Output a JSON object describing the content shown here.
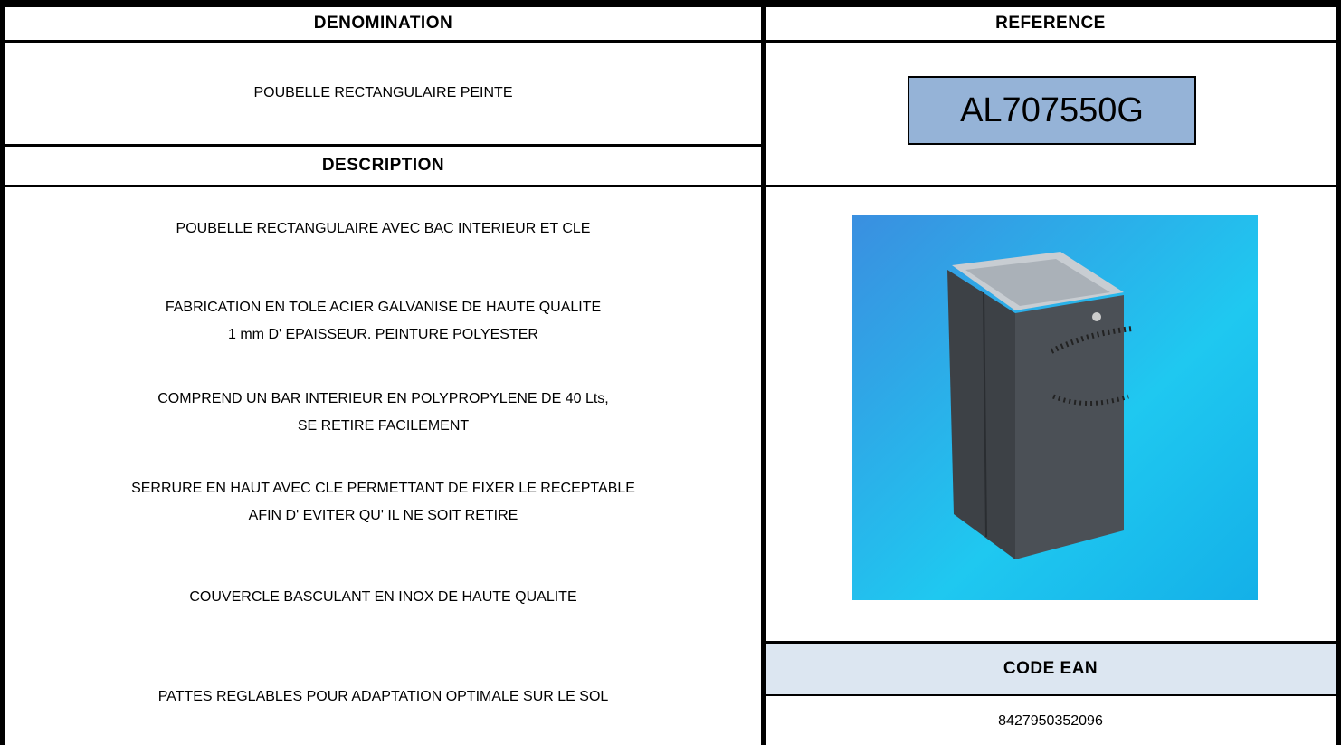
{
  "headers": {
    "denomination": "DENOMINATION",
    "reference": "REFERENCE",
    "description": "DESCRIPTION",
    "code_ean": "CODE EAN"
  },
  "denomination": "POUBELLE RECTANGULAIRE PEINTE",
  "reference": "AL707550G",
  "description": [
    [
      "POUBELLE RECTANGULAIRE AVEC BAC INTERIEUR ET CLE"
    ],
    [
      "FABRICATION EN TOLE ACIER GALVANISE DE HAUTE QUALITE",
      "1 mm D' EPAISSEUR. PEINTURE POLYESTER"
    ],
    [
      "COMPREND UN BAR INTERIEUR EN POLYPROPYLENE DE 40 Lts,",
      "SE RETIRE FACILEMENT"
    ],
    [
      "SERRURE EN HAUT AVEC CLE PERMETTANT DE FIXER LE RECEPTABLE",
      "AFIN D' EVITER QU' IL NE SOIT RETIRE"
    ],
    [
      "COUVERCLE BASCULANT EN INOX DE HAUTE QUALITE"
    ],
    [
      "PATTES REGLABLES POUR ADAPTATION OPTIMALE SUR LE SOL"
    ]
  ],
  "code_ean": "8427950352096"
}
